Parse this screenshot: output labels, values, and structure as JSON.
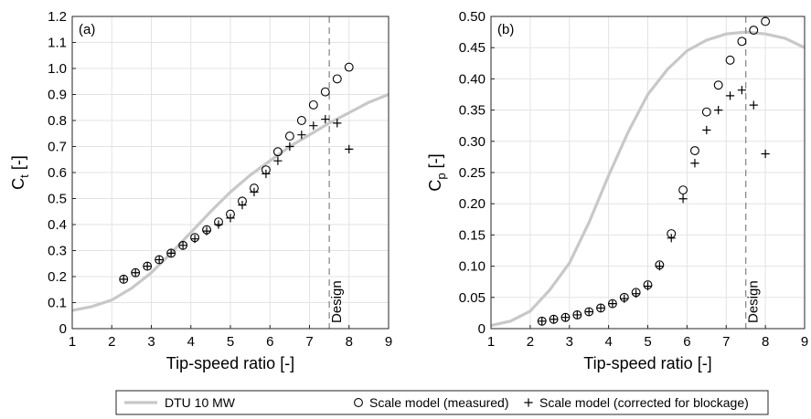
{
  "chart_data": [
    {
      "type": "line",
      "panel_label": "(a)",
      "xlabel": "Tip-speed ratio [-]",
      "ylabel": {
        "base": "C",
        "sub": "t",
        "suffix": " [-]"
      },
      "xlim": [
        1,
        9
      ],
      "ylim": [
        0,
        1.2
      ],
      "xticks": [
        1,
        2,
        3,
        4,
        5,
        6,
        7,
        8,
        9
      ],
      "yticks": [
        "0",
        "0.1",
        "0.2",
        "0.3",
        "0.4",
        "0.5",
        "0.6",
        "0.7",
        "0.8",
        "0.9",
        "1.0",
        "1.1",
        "1.2"
      ],
      "ytick_values": [
        0,
        0.1,
        0.2,
        0.3,
        0.4,
        0.5,
        0.6,
        0.7,
        0.8,
        0.9,
        1.0,
        1.1,
        1.2
      ],
      "grid": true,
      "design_line": {
        "x": 7.5,
        "label": "Design"
      },
      "series": [
        {
          "name": "DTU 10 MW",
          "style": "line",
          "color": "#c8c8c8",
          "x": [
            1,
            1.5,
            2,
            2.5,
            3,
            3.5,
            4,
            4.5,
            5,
            5.5,
            6,
            6.5,
            7,
            7.5,
            8,
            8.5,
            9
          ],
          "y": [
            0.07,
            0.085,
            0.11,
            0.155,
            0.215,
            0.29,
            0.37,
            0.45,
            0.525,
            0.59,
            0.645,
            0.7,
            0.745,
            0.79,
            0.83,
            0.87,
            0.9
          ]
        },
        {
          "name": "Scale model (measured)",
          "style": "circle",
          "x": [
            2.3,
            2.6,
            2.9,
            3.2,
            3.5,
            3.8,
            4.1,
            4.4,
            4.7,
            5.0,
            5.3,
            5.6,
            5.9,
            6.2,
            6.5,
            6.8,
            7.1,
            7.4,
            7.7,
            8.0
          ],
          "y": [
            0.19,
            0.215,
            0.24,
            0.265,
            0.29,
            0.32,
            0.35,
            0.38,
            0.41,
            0.44,
            0.49,
            0.54,
            0.61,
            0.68,
            0.74,
            0.8,
            0.86,
            0.91,
            0.96,
            1.005
          ]
        },
        {
          "name": "Scale model (corrected for blockage)",
          "style": "plus",
          "x": [
            2.3,
            2.6,
            2.9,
            3.2,
            3.5,
            3.8,
            4.1,
            4.4,
            4.7,
            5.0,
            5.3,
            5.6,
            5.9,
            6.2,
            6.5,
            6.8,
            7.1,
            7.4,
            7.7,
            8.0
          ],
          "y": [
            0.19,
            0.215,
            0.24,
            0.265,
            0.29,
            0.32,
            0.345,
            0.375,
            0.4,
            0.425,
            0.475,
            0.525,
            0.595,
            0.645,
            0.7,
            0.745,
            0.78,
            0.805,
            0.79,
            0.69
          ]
        }
      ]
    },
    {
      "type": "line",
      "panel_label": "(b)",
      "xlabel": "Tip-speed ratio [-]",
      "ylabel": {
        "base": "C",
        "sub": "p",
        "suffix": " [-]"
      },
      "xlim": [
        1,
        9
      ],
      "ylim": [
        0,
        0.5
      ],
      "xticks": [
        1,
        2,
        3,
        4,
        5,
        6,
        7,
        8,
        9
      ],
      "yticks": [
        "0",
        "0.05",
        "0.10",
        "0.15",
        "0.20",
        "0.25",
        "0.30",
        "0.35",
        "0.40",
        "0.45",
        "0.50"
      ],
      "ytick_values": [
        0,
        0.05,
        0.1,
        0.15,
        0.2,
        0.25,
        0.3,
        0.35,
        0.4,
        0.45,
        0.5
      ],
      "grid": true,
      "design_line": {
        "x": 7.5,
        "label": "Design"
      },
      "series": [
        {
          "name": "DTU 10 MW",
          "style": "line",
          "color": "#c8c8c8",
          "x": [
            1,
            1.5,
            2,
            2.5,
            3,
            3.5,
            4,
            4.5,
            5,
            5.5,
            6,
            6.5,
            7,
            7.5,
            8,
            8.5,
            9
          ],
          "y": [
            0.005,
            0.012,
            0.028,
            0.062,
            0.105,
            0.17,
            0.245,
            0.315,
            0.375,
            0.415,
            0.445,
            0.462,
            0.472,
            0.475,
            0.472,
            0.465,
            0.45
          ]
        },
        {
          "name": "Scale model (measured)",
          "style": "circle",
          "x": [
            2.3,
            2.6,
            2.9,
            3.2,
            3.5,
            3.8,
            4.1,
            4.4,
            4.7,
            5.0,
            5.3,
            5.6,
            5.9,
            6.2,
            6.5,
            6.8,
            7.1,
            7.4,
            7.7,
            8.0
          ],
          "y": [
            0.012,
            0.015,
            0.018,
            0.022,
            0.027,
            0.033,
            0.04,
            0.05,
            0.058,
            0.07,
            0.102,
            0.152,
            0.222,
            0.285,
            0.347,
            0.39,
            0.43,
            0.46,
            0.478,
            0.492
          ]
        },
        {
          "name": "Scale model (corrected for blockage)",
          "style": "plus",
          "x": [
            2.3,
            2.6,
            2.9,
            3.2,
            3.5,
            3.8,
            4.1,
            4.4,
            4.7,
            5.0,
            5.3,
            5.6,
            5.9,
            6.2,
            6.5,
            6.8,
            7.1,
            7.4,
            7.7,
            8.0
          ],
          "y": [
            0.012,
            0.015,
            0.018,
            0.022,
            0.027,
            0.033,
            0.04,
            0.048,
            0.056,
            0.068,
            0.1,
            0.145,
            0.208,
            0.265,
            0.318,
            0.35,
            0.373,
            0.382,
            0.358,
            0.28
          ]
        }
      ]
    }
  ],
  "legend": {
    "placement": "bottom",
    "entries": [
      {
        "label": "DTU 10 MW",
        "style": "line",
        "color": "#c8c8c8"
      },
      {
        "label": "Scale model (measured)",
        "style": "circle"
      },
      {
        "label": "Scale model (corrected for blockage)",
        "style": "plus"
      }
    ]
  }
}
